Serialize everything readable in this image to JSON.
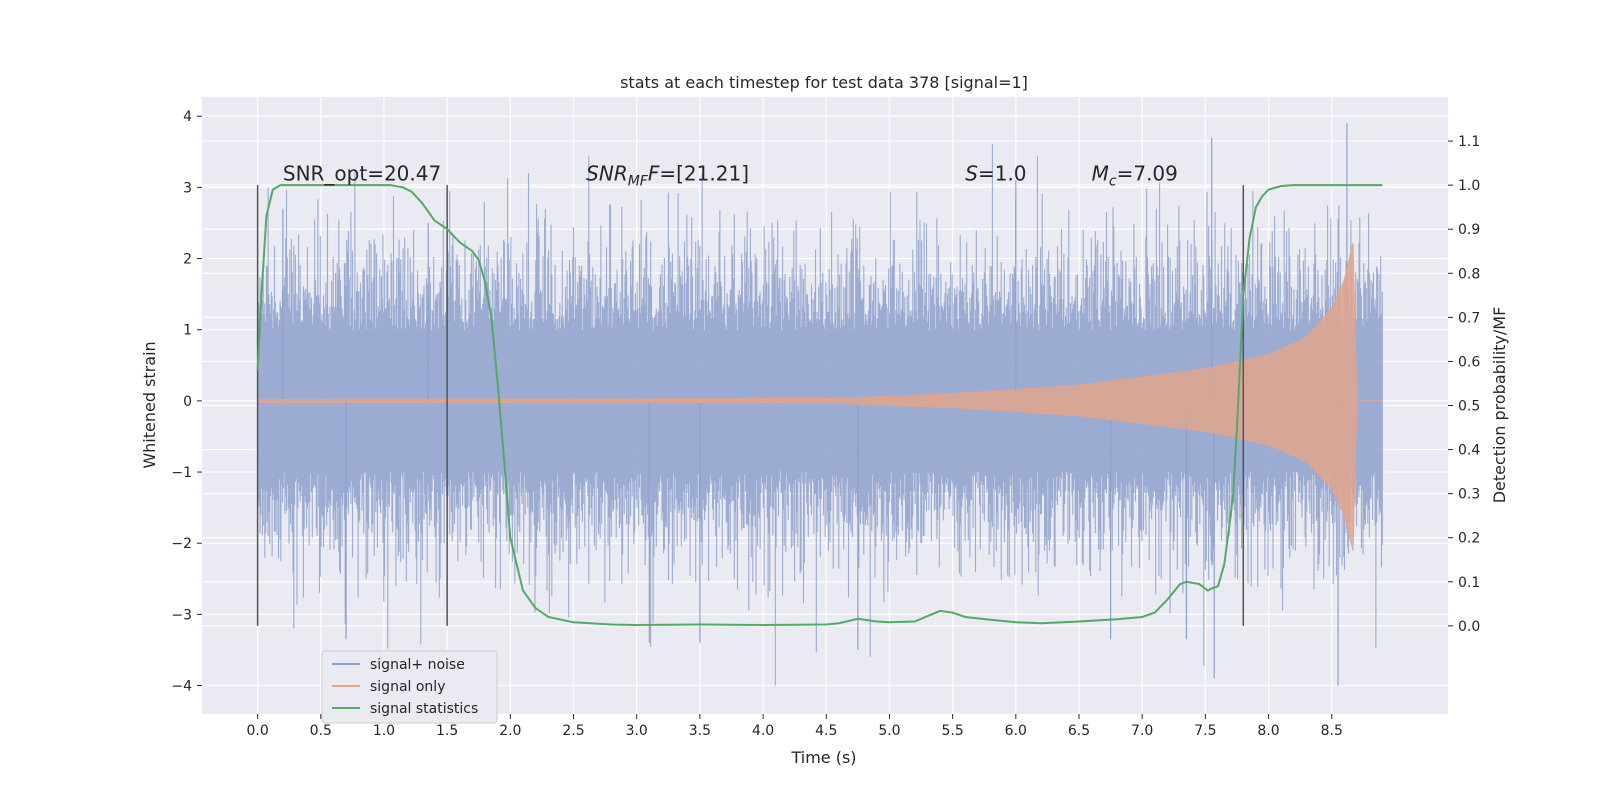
{
  "chart_data": {
    "type": "line",
    "title": "stats at each timestep for test data 378 [signal=1]",
    "xlabel": "Time (s)",
    "ylabel": "Whitened strain",
    "y2label": "Detection probability/MF",
    "xlim": [
      -0.44,
      9.42
    ],
    "ylim": [
      -4.4,
      4.27
    ],
    "y2lim": [
      -0.2,
      1.2
    ],
    "x_ticks": [
      0.0,
      0.5,
      1.0,
      1.5,
      2.0,
      2.5,
      3.0,
      3.5,
      4.0,
      4.5,
      5.0,
      5.5,
      6.0,
      6.5,
      7.0,
      7.5,
      8.0,
      8.5
    ],
    "x_tick_labels": [
      "0.0",
      "0.5",
      "1.0",
      "1.5",
      "2.0",
      "2.5",
      "3.0",
      "3.5",
      "4.0",
      "4.5",
      "5.0",
      "5.5",
      "6.0",
      "6.5",
      "7.0",
      "7.5",
      "8.0",
      "8.5"
    ],
    "y_ticks": [
      -4,
      -3,
      -2,
      -1,
      0,
      1,
      2,
      3,
      4
    ],
    "y_tick_labels": [
      "−4",
      "−3",
      "−2",
      "−1",
      "0",
      "1",
      "2",
      "3",
      "4"
    ],
    "y2_ticks": [
      0.0,
      0.1,
      0.2,
      0.3,
      0.4,
      0.5,
      0.6,
      0.7,
      0.8,
      0.9,
      1.0,
      1.1
    ],
    "y2_tick_labels": [
      "0.0",
      "0.1",
      "0.2",
      "0.3",
      "0.4",
      "0.5",
      "0.6",
      "0.7",
      "0.8",
      "0.9",
      "1.0",
      "1.1"
    ],
    "grid": true,
    "legend_position": "bottom-left",
    "series": [
      {
        "name": "signal+ noise",
        "color": "#8da0cb",
        "x_range": [
          0.0,
          8.9
        ],
        "typical_amplitude": 1.8,
        "peak_max": 3.9,
        "peak_min": -4.0
      },
      {
        "name": "signal only",
        "color": "#e1a48c",
        "x_range": [
          0.0,
          8.9
        ],
        "envelope": [
          [
            0.0,
            0.02
          ],
          [
            4.5,
            0.03
          ],
          [
            5.5,
            0.1
          ],
          [
            6.5,
            0.22
          ],
          [
            7.5,
            0.45
          ],
          [
            8.0,
            0.65
          ],
          [
            8.3,
            0.9
          ],
          [
            8.5,
            1.3
          ],
          [
            8.6,
            1.7
          ],
          [
            8.68,
            2.3
          ],
          [
            8.69,
            0.0
          ],
          [
            8.9,
            0.0
          ]
        ]
      },
      {
        "name": "signal statistics",
        "axis": "right",
        "color": "#55a868",
        "x": [
          0.0,
          0.03,
          0.07,
          0.12,
          0.18,
          0.25,
          0.35,
          0.5,
          0.7,
          0.9,
          1.05,
          1.15,
          1.22,
          1.3,
          1.4,
          1.5,
          1.6,
          1.7,
          1.75,
          1.8,
          1.85,
          1.9,
          1.95,
          2.0,
          2.1,
          2.2,
          2.3,
          2.5,
          2.8,
          3.0,
          3.5,
          4.0,
          4.5,
          4.6,
          4.75,
          4.9,
          5.0,
          5.2,
          5.3,
          5.4,
          5.5,
          5.6,
          5.8,
          6.0,
          6.2,
          6.5,
          6.8,
          7.0,
          7.1,
          7.2,
          7.3,
          7.35,
          7.45,
          7.52,
          7.55,
          7.6,
          7.65,
          7.7,
          7.72,
          7.75,
          7.8,
          7.85,
          7.9,
          7.95,
          8.0,
          8.1,
          8.2,
          8.5,
          8.9
        ],
        "values": [
          0.58,
          0.75,
          0.93,
          0.99,
          1.0,
          1.0,
          1.0,
          1.0,
          1.0,
          1.0,
          1.0,
          0.995,
          0.985,
          0.96,
          0.92,
          0.9,
          0.87,
          0.85,
          0.83,
          0.78,
          0.7,
          0.55,
          0.38,
          0.2,
          0.08,
          0.04,
          0.02,
          0.008,
          0.003,
          0.002,
          0.003,
          0.002,
          0.003,
          0.006,
          0.016,
          0.01,
          0.008,
          0.01,
          0.022,
          0.034,
          0.03,
          0.02,
          0.014,
          0.008,
          0.006,
          0.01,
          0.015,
          0.02,
          0.03,
          0.06,
          0.095,
          0.1,
          0.095,
          0.08,
          0.085,
          0.09,
          0.14,
          0.25,
          0.3,
          0.45,
          0.75,
          0.88,
          0.95,
          0.975,
          0.99,
          0.998,
          1.0,
          1.0,
          1.0
        ]
      }
    ],
    "vertical_lines": [
      0.0,
      1.5,
      7.8
    ],
    "annotations": [
      {
        "x": 0.2,
        "y": 3.1,
        "text": "SNR_opt=20.47"
      },
      {
        "x": 2.6,
        "y": 3.1,
        "text_main": "SNR",
        "text_sub": "MF",
        "text_end": "F=[21.21]"
      },
      {
        "x": 5.6,
        "y": 3.1,
        "text_main": "S",
        "text_end": "=1.0"
      },
      {
        "x": 6.6,
        "y": 3.1,
        "text_main": "M",
        "text_sub": "c",
        "text_end": "=7.09"
      }
    ]
  }
}
